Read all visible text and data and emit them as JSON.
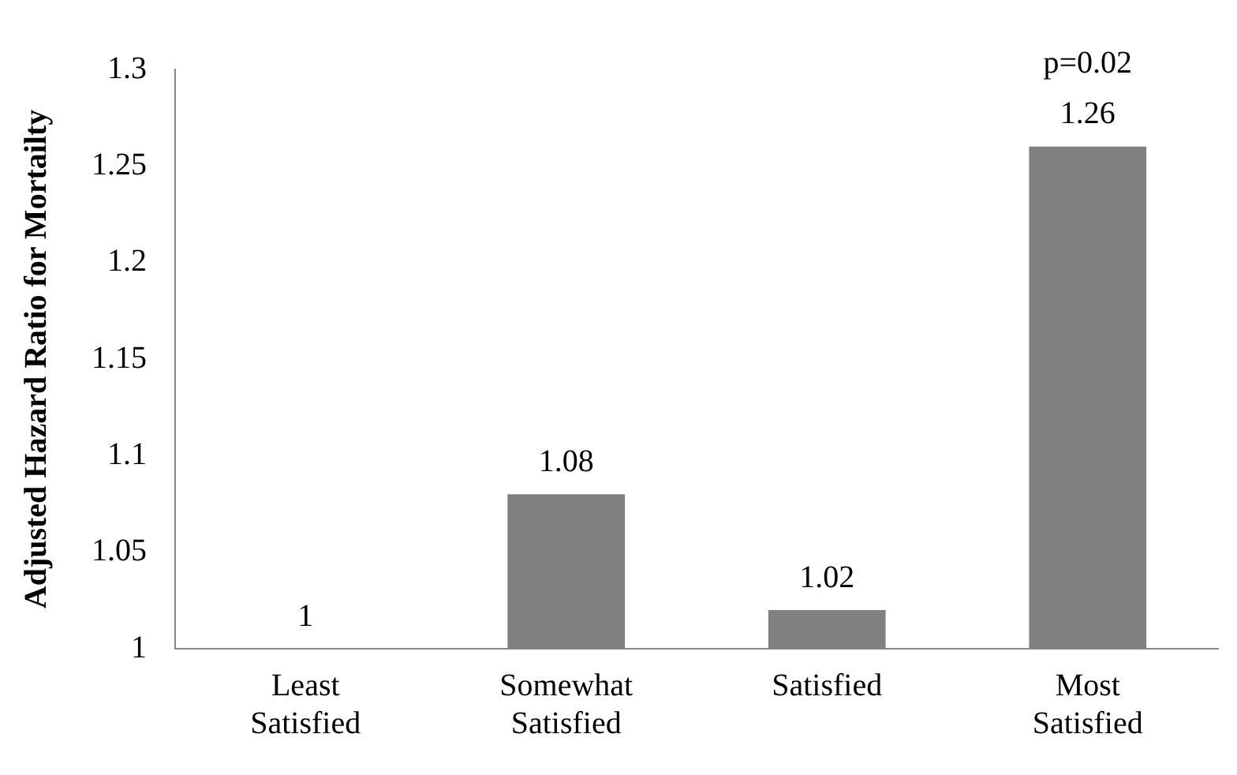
{
  "chart_data": {
    "type": "bar",
    "ylabel": "Adjusted Hazard Ratio for Mortailty",
    "categories": [
      "Least Satisfied",
      "Somewhat Satisfied",
      "Satisfied",
      "Most Satisfied"
    ],
    "values": [
      1,
      1.08,
      1.02,
      1.26
    ],
    "color": "#808080",
    "ylim": [
      1,
      1.3
    ],
    "yticks": [
      1,
      1.05,
      1.1,
      1.15,
      1.2,
      1.25,
      1.3
    ],
    "grid": false,
    "data_labels": true,
    "annotations": [
      {
        "text": "p=0.02",
        "x": "Most Satisfied",
        "y": 1.26
      }
    ]
  }
}
